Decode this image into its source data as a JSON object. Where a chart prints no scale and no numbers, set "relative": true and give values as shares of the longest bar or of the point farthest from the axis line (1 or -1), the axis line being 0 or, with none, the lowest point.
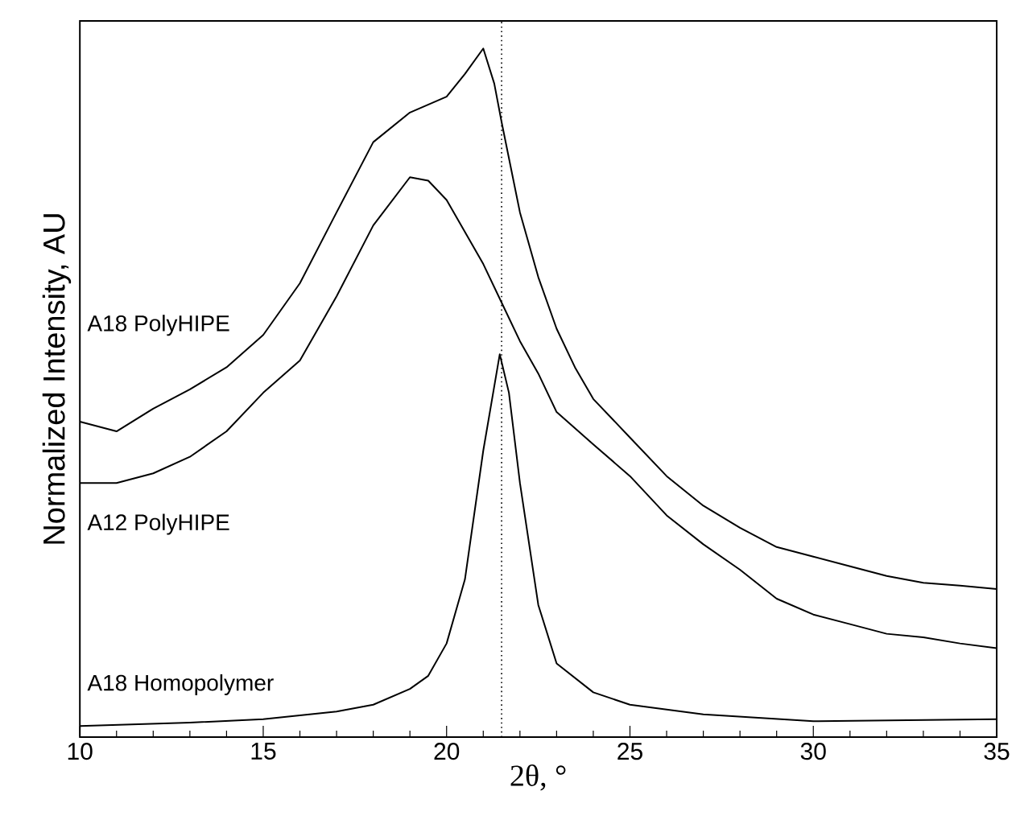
{
  "chart_data": {
    "type": "line",
    "relative": true,
    "xlabel": "2θ, °",
    "ylabel": "Normalized Intensity, AU",
    "xlim": [
      10,
      35
    ],
    "xticks": [
      10,
      {
        "value": 11,
        "label": null
      },
      {
        "value": 12,
        "label": null
      },
      {
        "value": 13,
        "label": null
      },
      {
        "value": 14,
        "label": null
      },
      15,
      {
        "value": 16,
        "label": null
      },
      {
        "value": 17,
        "label": null
      },
      {
        "value": 18,
        "label": null
      },
      {
        "value": 19,
        "label": null
      },
      20,
      {
        "value": 21,
        "label": null
      },
      {
        "value": 22,
        "label": null
      },
      {
        "value": 23,
        "label": null
      },
      {
        "value": 24,
        "label": null
      },
      25,
      {
        "value": 26,
        "label": null
      },
      {
        "value": 27,
        "label": null
      },
      {
        "value": 28,
        "label": null
      },
      {
        "value": 29,
        "label": null
      },
      30,
      {
        "value": 31,
        "label": null
      },
      {
        "value": 32,
        "label": null
      },
      {
        "value": 33,
        "label": null
      },
      {
        "value": 34,
        "label": null
      },
      35
    ],
    "tick_labels": "x",
    "line_style": "solid",
    "ref_lines": [
      {
        "axis": "x",
        "value": 21.5,
        "line_style": "dotted",
        "color": "#000000"
      }
    ],
    "series": [
      {
        "name": "A18 PolyHIPE",
        "color": "#000000",
        "x": [
          10,
          11,
          12,
          13,
          14,
          15,
          16,
          17,
          18,
          19,
          20,
          20.5,
          21,
          21.3,
          21.5,
          22,
          22.5,
          23,
          23.5,
          24,
          25,
          26,
          27,
          28,
          29,
          30,
          31,
          32,
          33,
          34,
          35
        ],
        "values": [
          0.458,
          0.444,
          0.477,
          0.505,
          0.537,
          0.584,
          0.659,
          0.762,
          0.864,
          0.907,
          0.93,
          0.963,
          1,
          0.949,
          0.893,
          0.762,
          0.668,
          0.593,
          0.537,
          0.491,
          0.435,
          0.379,
          0.336,
          0.304,
          0.276,
          0.262,
          0.248,
          0.234,
          0.224,
          0.22,
          0.215
        ]
      },
      {
        "name": "A12 PolyHIPE",
        "color": "#000000",
        "x": [
          10,
          11,
          12,
          13,
          14,
          15,
          16,
          17,
          18,
          19,
          19.5,
          20,
          21,
          21.5,
          22,
          22.5,
          23,
          24,
          25,
          26,
          27,
          28,
          29,
          30,
          31,
          32,
          33,
          34,
          35
        ],
        "values": [
          0.369,
          0.369,
          0.383,
          0.407,
          0.444,
          0.5,
          0.547,
          0.64,
          0.743,
          0.813,
          0.808,
          0.78,
          0.687,
          0.631,
          0.575,
          0.528,
          0.472,
          0.425,
          0.379,
          0.322,
          0.28,
          0.243,
          0.201,
          0.178,
          0.164,
          0.15,
          0.145,
          0.136,
          0.129
        ]
      },
      {
        "name": "A18 Homopolymer",
        "color": "#000000",
        "x": [
          10,
          13,
          15,
          17,
          18,
          19,
          19.5,
          20,
          20.5,
          21,
          21.45,
          21.7,
          22,
          22.5,
          23,
          24,
          25,
          27,
          30,
          35
        ],
        "values": [
          0.016,
          0.021,
          0.026,
          0.037,
          0.047,
          0.07,
          0.089,
          0.136,
          0.229,
          0.416,
          0.556,
          0.5,
          0.369,
          0.192,
          0.107,
          0.065,
          0.047,
          0.033,
          0.023,
          0.026
        ]
      }
    ]
  }
}
